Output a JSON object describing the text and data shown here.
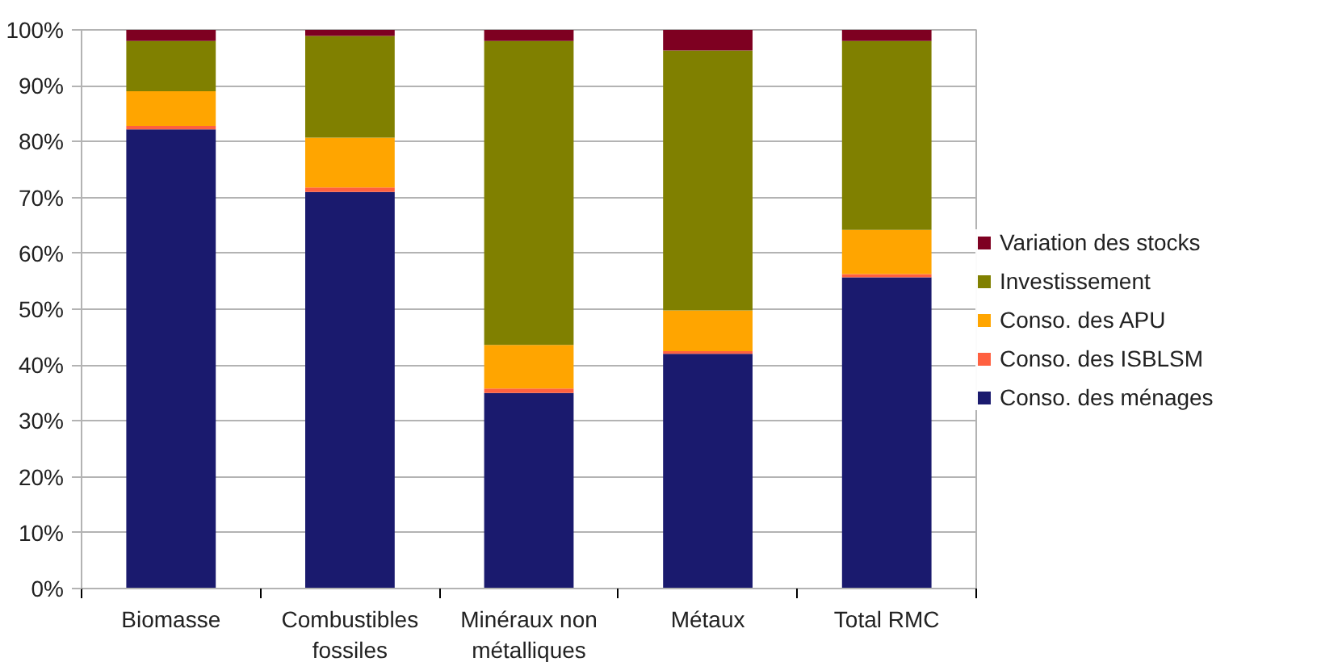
{
  "chart_data": {
    "type": "bar",
    "stacked": true,
    "categories": [
      "Biomasse",
      "Combustibles fossiles",
      "Minéraux non métalliques",
      "Métaux",
      "Total RMC"
    ],
    "series": [
      {
        "name": "Conso. des ménages",
        "color": "#1a1a6e",
        "values": [
          82.2,
          71,
          35,
          42,
          55.7
        ]
      },
      {
        "name": "Conso. des ISBLSM",
        "color": "#ff6040",
        "values": [
          0.6,
          0.8,
          0.8,
          0.5,
          0.6
        ]
      },
      {
        "name": "Conso. des APU",
        "color": "#ffa500",
        "values": [
          6.2,
          8.9,
          7.8,
          7.3,
          7.9
        ]
      },
      {
        "name": "Investissement",
        "color": "#808000",
        "values": [
          9,
          18.2,
          54.4,
          46.5,
          33.8
        ]
      },
      {
        "name": "Variation des stocks",
        "color": "#7e0021",
        "values": [
          2,
          1.1,
          2,
          3.7,
          2
        ]
      }
    ],
    "ylim": [
      0,
      100
    ],
    "yticks": [
      {
        "value": 0,
        "label": "0%"
      },
      {
        "value": 10,
        "label": "10%"
      },
      {
        "value": 20,
        "label": "20%"
      },
      {
        "value": 30,
        "label": "30%"
      },
      {
        "value": 40,
        "label": "40%"
      },
      {
        "value": 50,
        "label": "50%"
      },
      {
        "value": 60,
        "label": "60%"
      },
      {
        "value": 70,
        "label": "70%"
      },
      {
        "value": 80,
        "label": "80%"
      },
      {
        "value": 90,
        "label": "90%"
      },
      {
        "value": 100,
        "label": "100%"
      }
    ],
    "grid": "y",
    "legend": "right"
  }
}
